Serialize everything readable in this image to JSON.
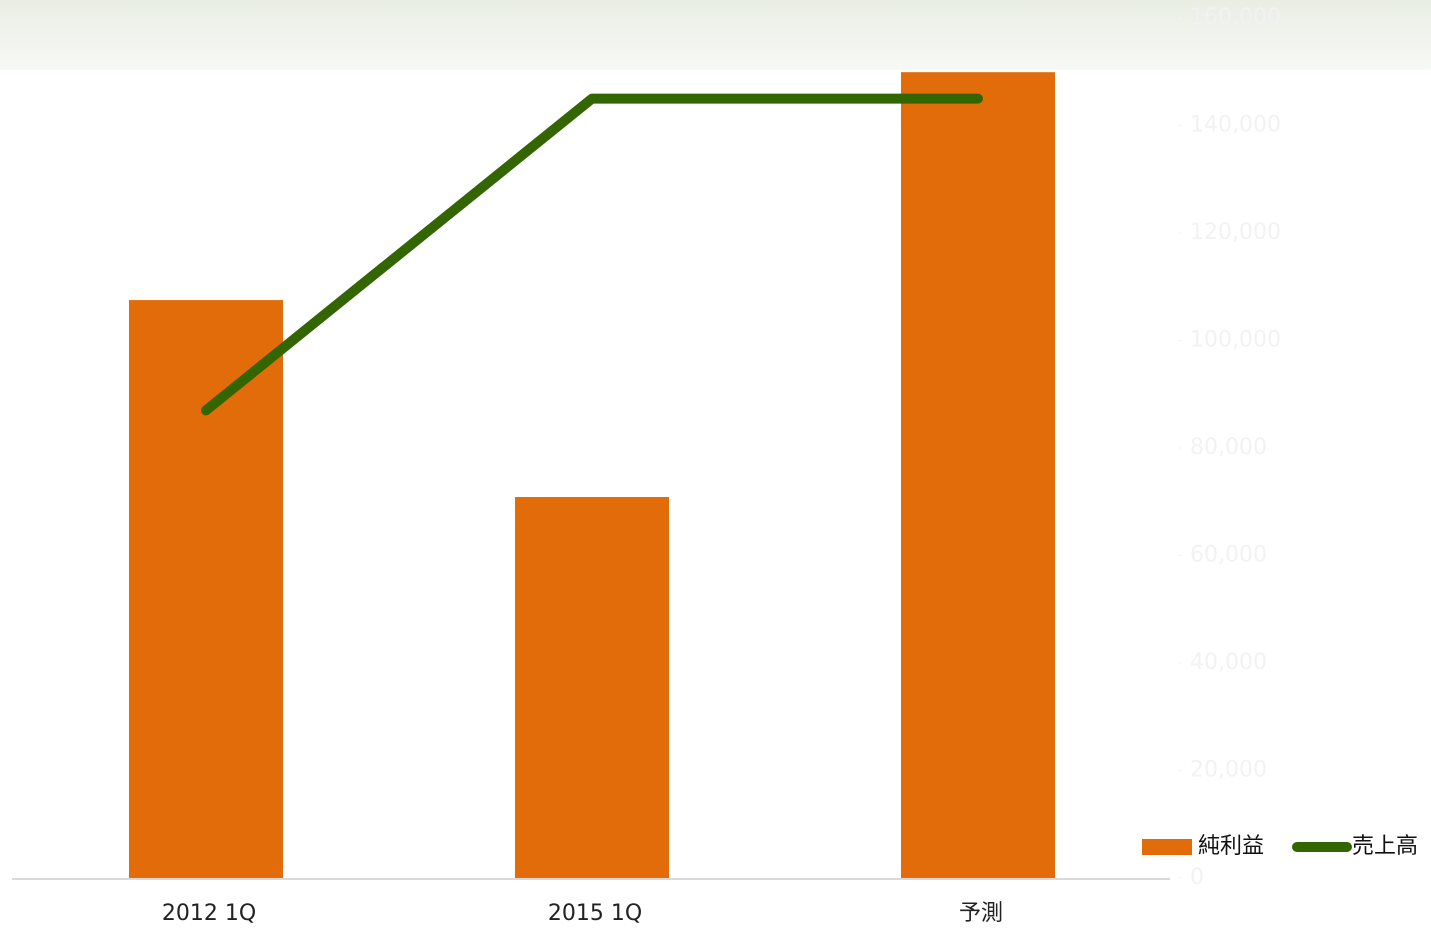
{
  "chart_data": {
    "type": "bar_line",
    "categories": [
      "2012 1Q",
      "2015 1Q",
      "予測"
    ],
    "series": [
      {
        "name": "純利益",
        "type": "bar",
        "color": "#e36c0a",
        "values": [
          672,
          443,
          937
        ]
      },
      {
        "name": "売上高",
        "type": "line",
        "color": "#336600",
        "axis": "y2",
        "values": [
          87000,
          145000,
          145000
        ]
      }
    ],
    "ylim": [
      0,
      1000
    ],
    "y2lim": [
      0,
      160000
    ],
    "y2ticks": [
      {
        "value": 0,
        "label": "0"
      },
      {
        "value": 20000,
        "label": "20,000"
      },
      {
        "value": 40000,
        "label": "40,000"
      },
      {
        "value": 60000,
        "label": "60,000"
      },
      {
        "value": 80000,
        "label": "80,000"
      },
      {
        "value": 100000,
        "label": "100,000"
      },
      {
        "value": 120000,
        "label": "120,000"
      },
      {
        "value": 140000,
        "label": "140,000"
      },
      {
        "value": 160000,
        "label": "160,000"
      }
    ],
    "legend": "bottom-right"
  }
}
